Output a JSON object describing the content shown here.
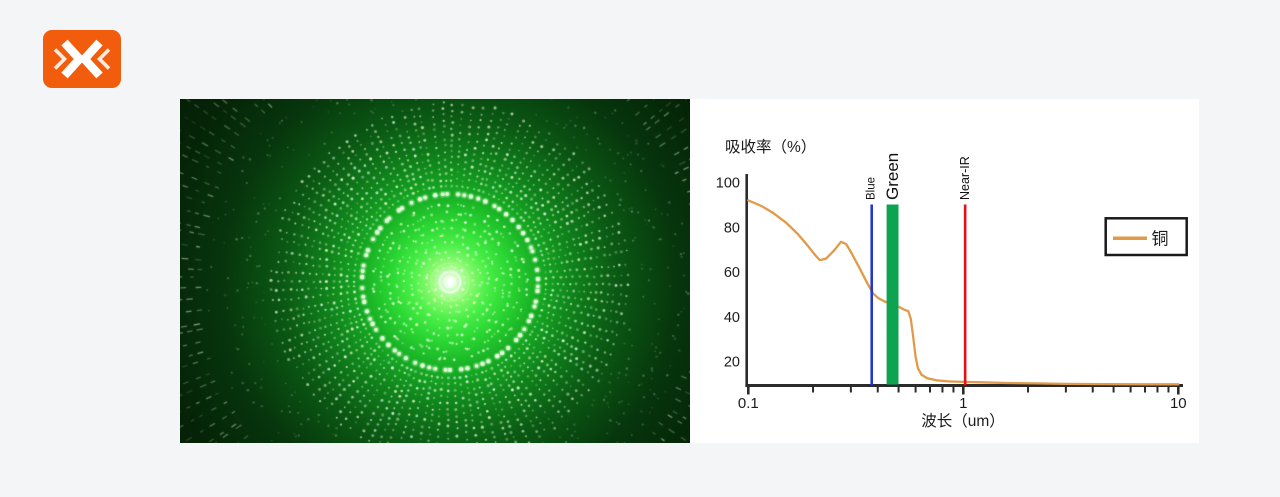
{
  "page": {
    "background_color": "#f4f5f7"
  },
  "brand_logo": {
    "icon": "double-chevron-x-logo",
    "background_color": "#f25c0d",
    "chevron_color": "#ffffff"
  },
  "laser_image": {
    "description": "green laser diffraction dot pattern with bright white core and concentric dotted rings",
    "colors": {
      "core": "#ffffff",
      "inner_glow": "#4aef48",
      "mid_green": "#18b025",
      "edge": "#051d07",
      "dot": "#dcffd2"
    }
  },
  "chart_data": {
    "type": "line",
    "title": "吸收率（%）",
    "xlabel": "波长（um）",
    "x_scale": "log",
    "xlim": [
      0.1,
      10
    ],
    "ylim": [
      9.4,
      104
    ],
    "grid": false,
    "axis_color": "#2b2b2b",
    "text_color": "#1b1b1b",
    "y_ticks": [
      100,
      80,
      60,
      40,
      20
    ],
    "x_major_ticks": [
      0.1,
      1,
      10
    ],
    "x_minor_ticks": [
      0.2,
      0.3,
      0.4,
      0.5,
      0.6,
      0.7,
      0.8,
      0.9,
      2,
      3,
      4,
      5,
      6,
      7,
      8,
      9
    ],
    "legend_position": "upper right",
    "series": [
      {
        "name": "铜",
        "color": "#e09a4a",
        "points": [
          [
            0.1,
            92
          ],
          [
            0.115,
            89.5
          ],
          [
            0.13,
            86.5
          ],
          [
            0.15,
            82
          ],
          [
            0.17,
            77
          ],
          [
            0.19,
            71.5
          ],
          [
            0.205,
            67.5
          ],
          [
            0.215,
            65.3
          ],
          [
            0.23,
            66
          ],
          [
            0.25,
            69.5
          ],
          [
            0.27,
            73.5
          ],
          [
            0.285,
            72.5
          ],
          [
            0.3,
            69
          ],
          [
            0.33,
            61.5
          ],
          [
            0.36,
            54.5
          ],
          [
            0.38,
            50.5
          ],
          [
            0.4,
            48.5
          ],
          [
            0.43,
            46.8
          ],
          [
            0.46,
            45.8
          ],
          [
            0.5,
            44.5
          ],
          [
            0.53,
            43.2
          ],
          [
            0.555,
            42.5
          ],
          [
            0.57,
            39
          ],
          [
            0.585,
            31
          ],
          [
            0.6,
            22
          ],
          [
            0.615,
            17
          ],
          [
            0.64,
            14
          ],
          [
            0.68,
            12.5
          ],
          [
            0.75,
            11.6
          ],
          [
            0.85,
            11.1
          ],
          [
            1.0,
            10.9
          ],
          [
            1.2,
            10.7
          ],
          [
            1.6,
            10.4
          ],
          [
            2.2,
            10.2
          ],
          [
            3.0,
            10.0
          ],
          [
            4.5,
            9.9
          ],
          [
            7.0,
            9.8
          ],
          [
            10.0,
            9.8
          ]
        ]
      }
    ],
    "wavelength_markers": [
      {
        "label": "Blue",
        "style": "line",
        "um": 0.375,
        "color": "#2338cb",
        "label_size": 11.5
      },
      {
        "label": "Green",
        "style": "band",
        "um_range": [
          0.44,
          0.5
        ],
        "color": "#0da351",
        "label_size": 17
      },
      {
        "label": "Near-IR",
        "style": "line",
        "um": 1.02,
        "color": "#e60f15",
        "label_size": 12.5
      }
    ],
    "legend": {
      "label": "铜",
      "line_color": "#e09a4a",
      "border_color": "#1a1a1a"
    }
  }
}
